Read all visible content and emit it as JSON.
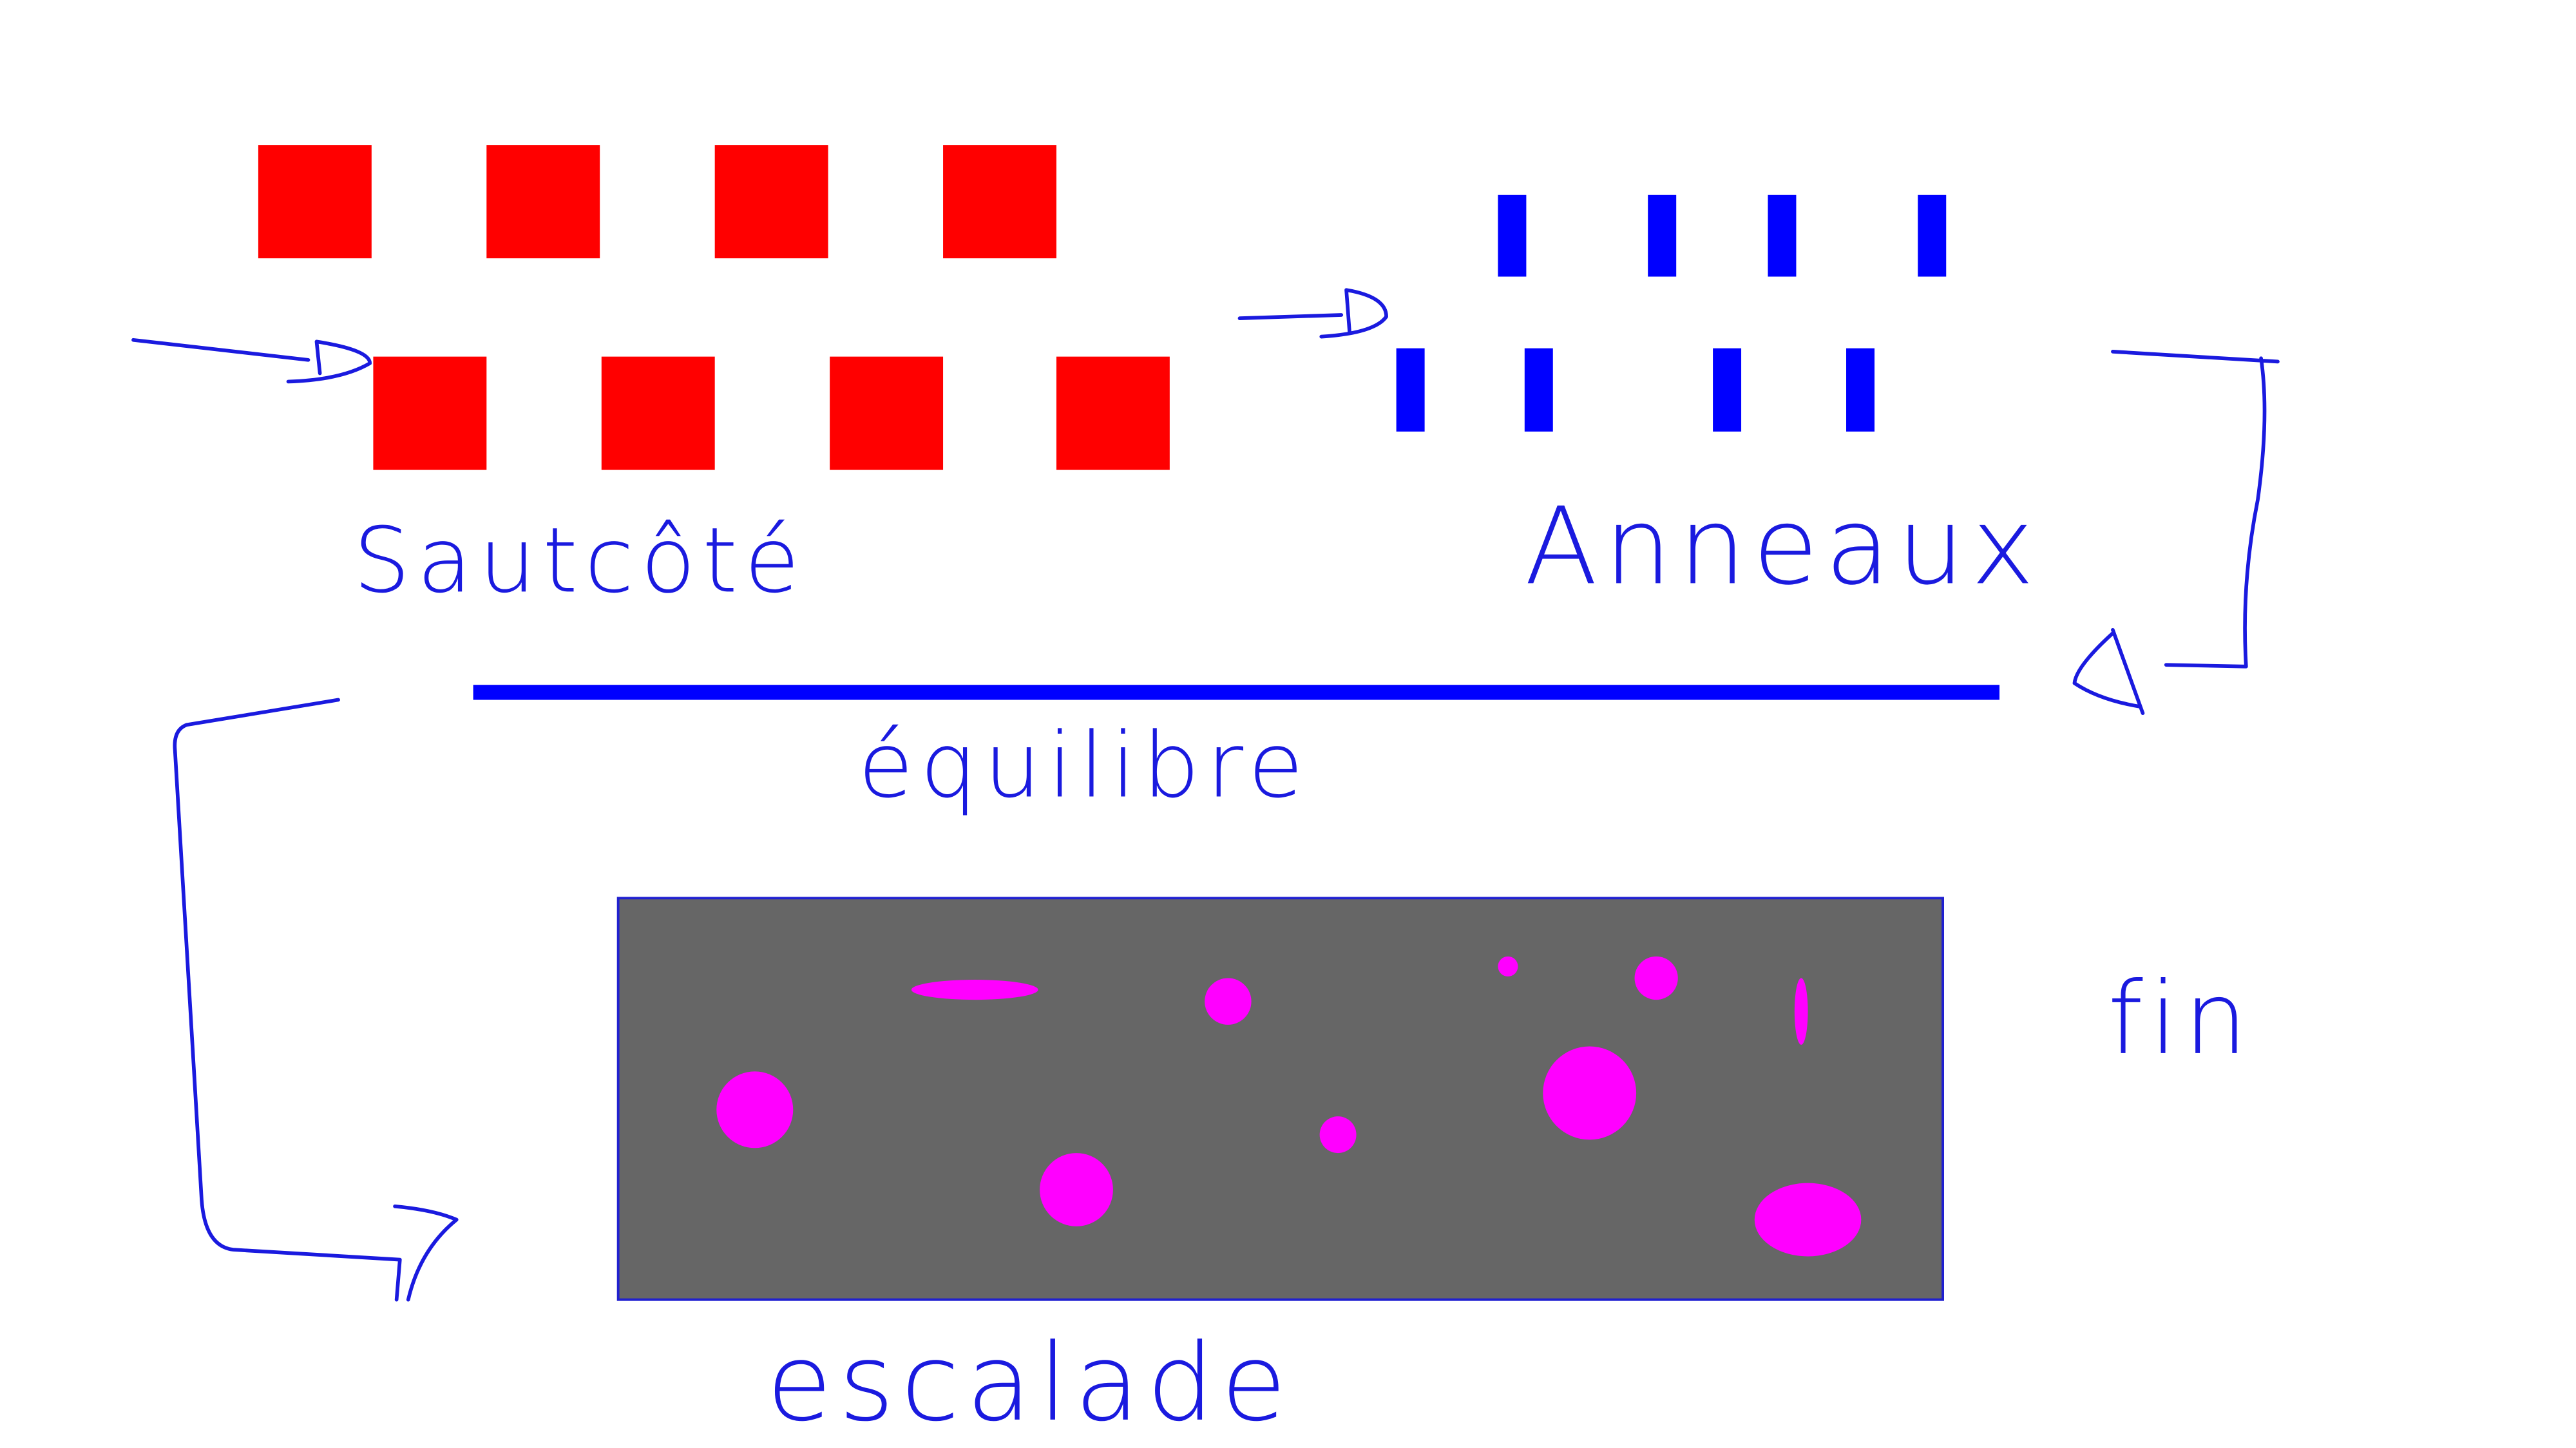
{
  "labels": {
    "saut_cote": "Sautcôté",
    "anneaux": "Anneaux",
    "equilibre": "équilibre",
    "escalade": "escalade",
    "fin": "fin"
  }
}
